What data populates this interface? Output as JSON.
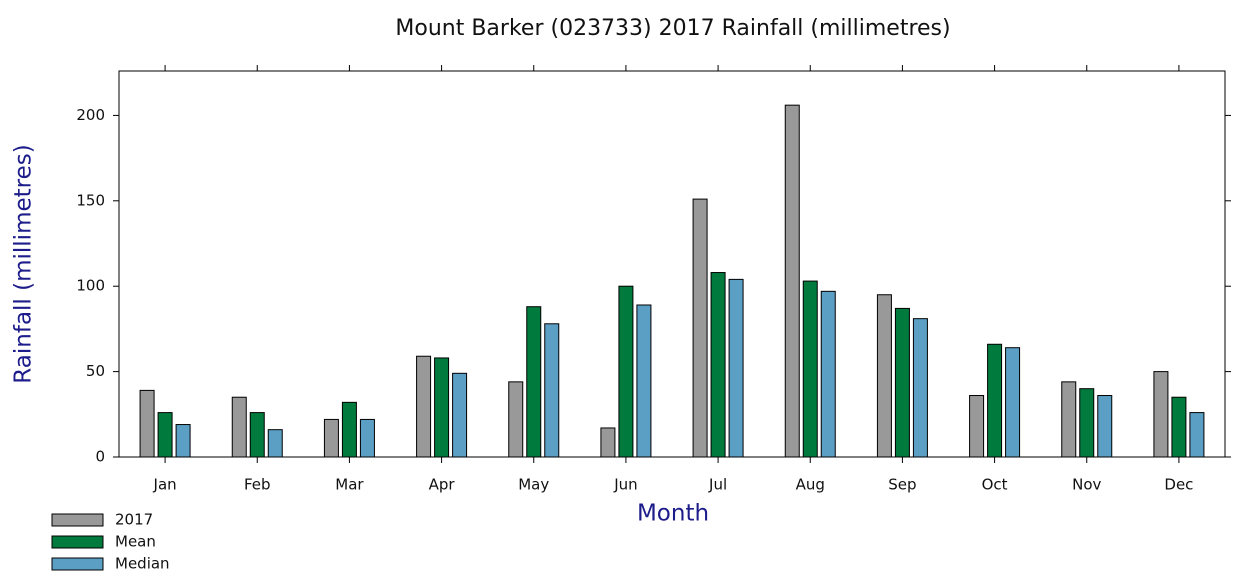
{
  "chart_data": {
    "type": "bar",
    "title": "Mount Barker (023733) 2017 Rainfall (millimetres)",
    "x_label": "Month",
    "y_label": "Rainfall (millimetres)",
    "categories": [
      "Jan",
      "Feb",
      "Mar",
      "Apr",
      "May",
      "Jun",
      "Jul",
      "Aug",
      "Sep",
      "Oct",
      "Nov",
      "Dec"
    ],
    "series": [
      {
        "name": "2017",
        "color": "#999999",
        "values": [
          39,
          35,
          22,
          59,
          44,
          17,
          151,
          206,
          95,
          36,
          44,
          50
        ]
      },
      {
        "name": "Mean",
        "color": "#007a3d",
        "values": [
          26,
          26,
          32,
          58,
          88,
          100,
          108,
          103,
          87,
          66,
          40,
          35
        ]
      },
      {
        "name": "Median",
        "color": "#5b9fc4",
        "values": [
          19,
          16,
          22,
          49,
          78,
          89,
          104,
          97,
          81,
          64,
          36,
          26
        ]
      }
    ],
    "ylim": [
      0,
      226
    ],
    "yticks": [
      0,
      50,
      100,
      150,
      200
    ],
    "legend": "bottom-left"
  }
}
